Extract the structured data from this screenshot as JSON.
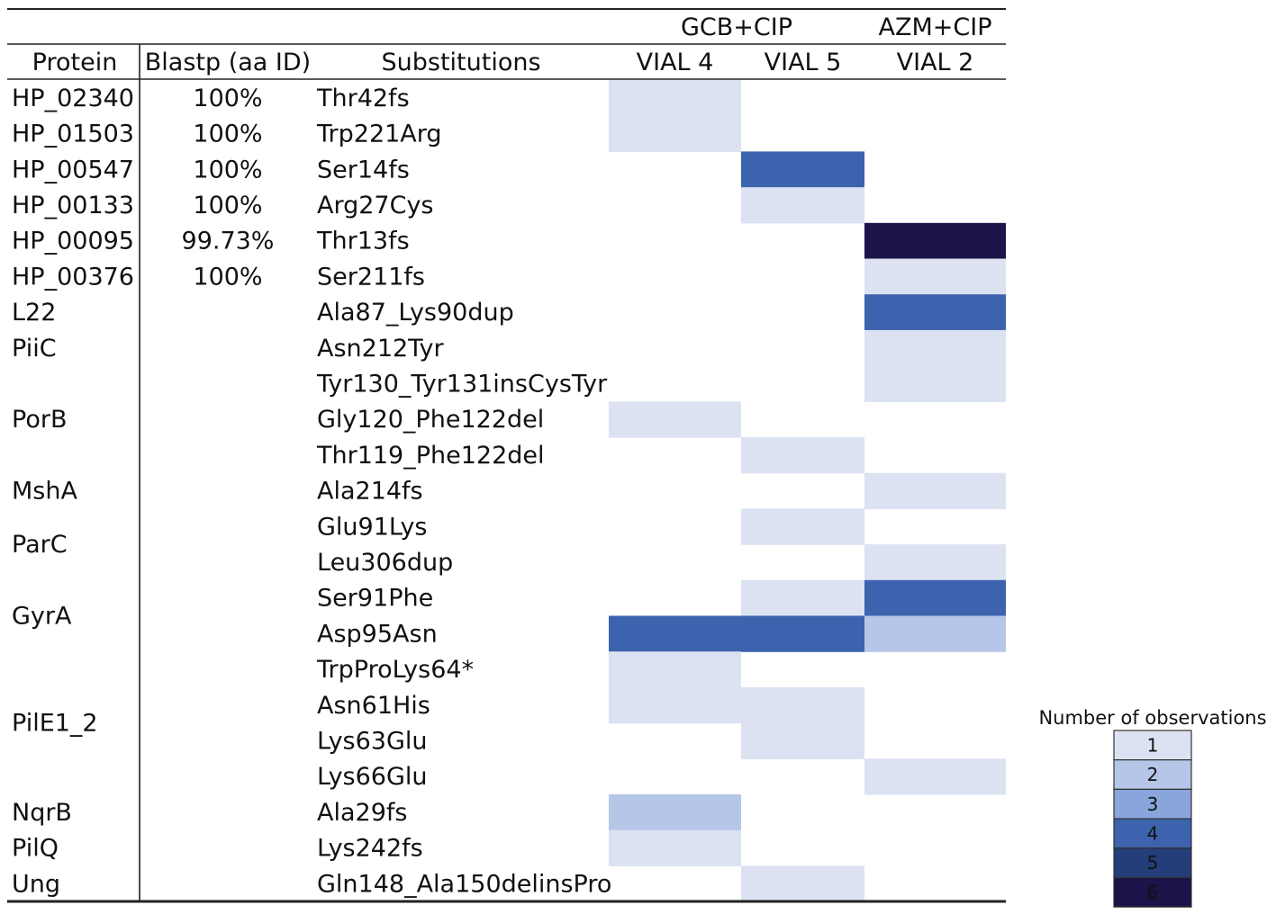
{
  "chart_data": {
    "type": "heatmap",
    "headers": {
      "protein": "Protein",
      "blastp": "Blastp (aa ID)",
      "substitutions": "Substitutions"
    },
    "groups": [
      {
        "label": "GCB+CIP",
        "columns": [
          "VIAL 4",
          "VIAL 5"
        ]
      },
      {
        "label": "AZM+CIP",
        "columns": [
          "VIAL 2"
        ]
      }
    ],
    "columns": [
      "VIAL 4",
      "VIAL 5",
      "VIAL 2"
    ],
    "rows": [
      {
        "protein": "HP_02340",
        "blastp": "100%",
        "substitution": "Thr42fs",
        "values": [
          1,
          null,
          null
        ]
      },
      {
        "protein": "HP_01503",
        "blastp": "100%",
        "substitution": "Trp221Arg",
        "values": [
          1,
          null,
          null
        ]
      },
      {
        "protein": "HP_00547",
        "blastp": "100%",
        "substitution": "Ser14fs",
        "values": [
          null,
          4,
          null
        ]
      },
      {
        "protein": "HP_00133",
        "blastp": "100%",
        "substitution": "Arg27Cys",
        "values": [
          null,
          1,
          null
        ]
      },
      {
        "protein": "HP_00095",
        "blastp": "99.73%",
        "substitution": "Thr13fs",
        "values": [
          null,
          null,
          6
        ]
      },
      {
        "protein": "HP_00376",
        "blastp": "100%",
        "substitution": "Ser211fs",
        "values": [
          null,
          null,
          1
        ]
      },
      {
        "protein": "L22",
        "blastp": "",
        "substitution": "Ala87_Lys90dup",
        "values": [
          null,
          null,
          4
        ]
      },
      {
        "protein": "PiiC",
        "blastp": "",
        "substitution": "Asn212Tyr",
        "values": [
          null,
          null,
          1
        ]
      },
      {
        "protein": "",
        "blastp": "",
        "substitution": "Tyr130_Tyr131insCysTyr",
        "values": [
          null,
          null,
          1
        ]
      },
      {
        "protein": "PorB",
        "blastp": "",
        "substitution": "Gly120_Phe122del",
        "values": [
          1,
          null,
          null
        ]
      },
      {
        "protein": "",
        "blastp": "",
        "substitution": "Thr119_Phe122del",
        "values": [
          null,
          1,
          null
        ]
      },
      {
        "protein": "MshA",
        "blastp": "",
        "substitution": "Ala214fs",
        "values": [
          null,
          null,
          1
        ]
      },
      {
        "protein": "",
        "blastp": "",
        "substitution": "Glu91Lys",
        "values": [
          null,
          1,
          null
        ]
      },
      {
        "protein": "",
        "blastp": "",
        "substitution": "Leu306dup",
        "values": [
          null,
          null,
          1
        ]
      },
      {
        "protein": "",
        "blastp": "",
        "substitution": "Ser91Phe",
        "values": [
          null,
          1,
          4
        ]
      },
      {
        "protein": "",
        "blastp": "",
        "substitution": "Asp95Asn",
        "values": [
          4,
          4,
          2
        ]
      },
      {
        "protein": "",
        "blastp": "",
        "substitution": "TrpProLys64*",
        "values": [
          1,
          null,
          null
        ]
      },
      {
        "protein": "",
        "blastp": "",
        "substitution": "Asn61His",
        "values": [
          1,
          1,
          null
        ]
      },
      {
        "protein": "",
        "blastp": "",
        "substitution": "Lys63Glu",
        "values": [
          null,
          1,
          null
        ]
      },
      {
        "protein": "",
        "blastp": "",
        "substitution": "Lys66Glu",
        "values": [
          null,
          null,
          1
        ]
      },
      {
        "protein": "NqrB",
        "blastp": "",
        "substitution": "Ala29fs",
        "values": [
          2,
          null,
          null
        ]
      },
      {
        "protein": "PilQ",
        "blastp": "",
        "substitution": "Lys242fs",
        "values": [
          1,
          null,
          null
        ]
      },
      {
        "protein": "Ung",
        "blastp": "",
        "substitution": "Gln148_Ala150delinsPro",
        "values": [
          null,
          1,
          null
        ]
      }
    ],
    "spanning_protein_labels": [
      {
        "label": "ParC",
        "from_row": 12,
        "to_row": 13
      },
      {
        "label": "GyrA",
        "from_row": 14,
        "to_row": 15
      },
      {
        "label": "PilE1_2",
        "from_row": 16,
        "to_row": 19
      }
    ],
    "legend": {
      "title": "Number of observations",
      "levels": [
        {
          "value": "1",
          "color": "#dce2f2"
        },
        {
          "value": "2",
          "color": "#b5c6e8"
        },
        {
          "value": "3",
          "color": "#89a5db"
        },
        {
          "value": "4",
          "color": "#3d62ae"
        },
        {
          "value": "5",
          "color": "#243e7a"
        },
        {
          "value": "6",
          "color": "#1a1448"
        }
      ],
      "placement": "right"
    }
  }
}
